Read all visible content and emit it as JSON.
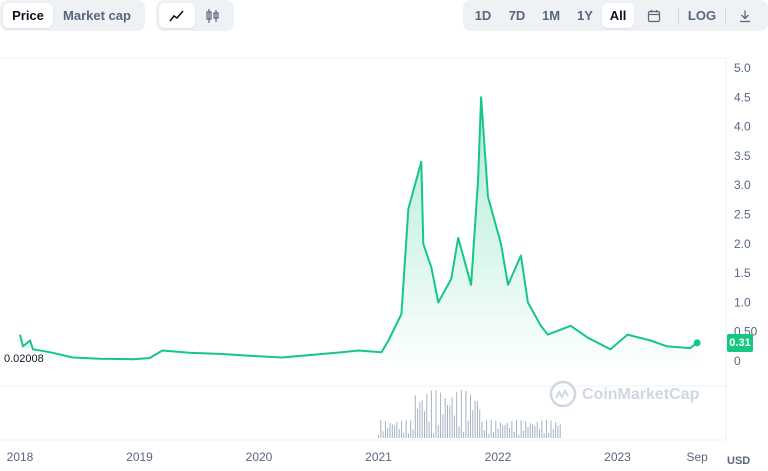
{
  "toolbar": {
    "metric_tabs": [
      "Price",
      "Market cap"
    ],
    "active_metric": "Price",
    "range_tabs": [
      "1D",
      "7D",
      "1M",
      "1Y",
      "All"
    ],
    "active_range": "All",
    "log_label": "LOG",
    "chart_type_icons": [
      "line-chart-icon",
      "candlestick-icon"
    ],
    "extra_icons": [
      "calendar-icon",
      "download-icon"
    ]
  },
  "chart_data": {
    "type": "area",
    "title": "",
    "xlabel": "",
    "ylabel": "",
    "unit": "USD",
    "ylim": [
      0,
      5.0
    ],
    "y_ticks": [
      "0",
      "0.50",
      "1.0",
      "1.5",
      "2.0",
      "2.5",
      "3.0",
      "3.5",
      "4.0",
      "4.5",
      "5.0"
    ],
    "x_ticks": [
      "2018",
      "2019",
      "2020",
      "2021",
      "2022",
      "2023",
      "Sep"
    ],
    "current_price": "0.31",
    "min_label": "0.02008",
    "watermark": "CoinMarketCap",
    "series": [
      {
        "color": "#16c784",
        "points": [
          [
            "2018-01",
            0.45
          ],
          [
            "2018-01",
            0.25
          ],
          [
            "2018-02",
            0.35
          ],
          [
            "2018-02",
            0.2
          ],
          [
            "2018-04",
            0.15
          ],
          [
            "2018-06",
            0.06
          ],
          [
            "2018-09",
            0.04
          ],
          [
            "2018-12",
            0.03
          ],
          [
            "2019-02",
            0.05
          ],
          [
            "2019-03",
            0.18
          ],
          [
            "2019-06",
            0.14
          ],
          [
            "2019-09",
            0.12
          ],
          [
            "2019-12",
            0.09
          ],
          [
            "2020-03",
            0.06
          ],
          [
            "2020-06",
            0.1
          ],
          [
            "2020-09",
            0.15
          ],
          [
            "2020-11",
            0.18
          ],
          [
            "2021-01",
            0.15
          ],
          [
            "2021-02",
            0.35
          ],
          [
            "2021-03",
            0.8
          ],
          [
            "2021-04",
            2.6
          ],
          [
            "2021-05",
            3.4
          ],
          [
            "2021-05",
            2.0
          ],
          [
            "2021-06",
            1.6
          ],
          [
            "2021-07",
            1.0
          ],
          [
            "2021-08",
            1.4
          ],
          [
            "2021-09",
            2.1
          ],
          [
            "2021-10",
            1.3
          ],
          [
            "2021-11",
            3.1
          ],
          [
            "2021-11",
            4.5
          ],
          [
            "2021-12",
            2.8
          ],
          [
            "2022-01",
            2.0
          ],
          [
            "2022-02",
            1.3
          ],
          [
            "2022-03",
            1.8
          ],
          [
            "2022-04",
            1.0
          ],
          [
            "2022-05",
            0.6
          ],
          [
            "2022-06",
            0.45
          ],
          [
            "2022-08",
            0.6
          ],
          [
            "2022-10",
            0.4
          ],
          [
            "2022-12",
            0.2
          ],
          [
            "2023-02",
            0.45
          ],
          [
            "2023-04",
            0.35
          ],
          [
            "2023-06",
            0.25
          ],
          [
            "2023-08",
            0.22
          ],
          [
            "2023-09",
            0.31
          ]
        ]
      }
    ]
  }
}
